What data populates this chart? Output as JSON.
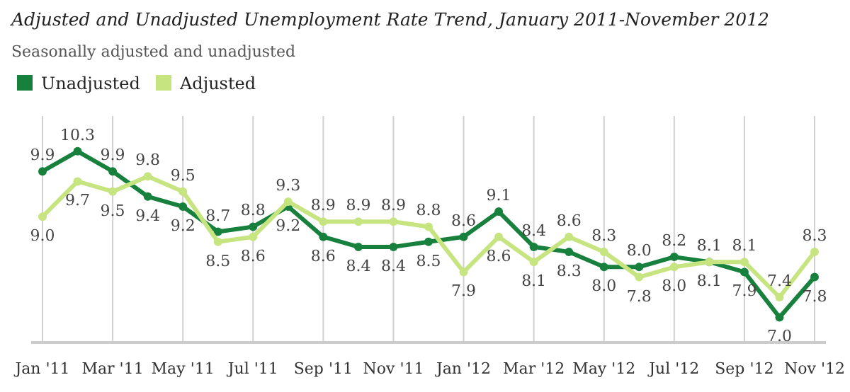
{
  "chart_data": {
    "type": "line",
    "title": "Adjusted and Unadjusted Unemployment Rate Trend, January 2011-November 2012",
    "subtitle": "Seasonally adjusted and unadjusted",
    "categories": [
      "Jan '11",
      null,
      "Mar '11",
      null,
      "May '11",
      null,
      "Jul '11",
      null,
      "Sep '11",
      null,
      "Nov '11",
      null,
      "Jan '12",
      null,
      "Mar '12",
      null,
      "May '12",
      null,
      "Jul '12",
      null,
      "Sep '12",
      null,
      "Nov '12"
    ],
    "series": [
      {
        "name": "Unadjusted",
        "color": "#17803d",
        "values": [
          9.9,
          10.3,
          9.9,
          9.4,
          9.2,
          8.7,
          8.8,
          9.2,
          8.6,
          8.4,
          8.4,
          8.5,
          8.6,
          9.1,
          8.4,
          8.3,
          8.0,
          8.0,
          8.2,
          8.1,
          7.9,
          7.0,
          7.8
        ],
        "value_labels": [
          "9.9",
          "10.3",
          "9.9",
          "9.4",
          "9.2",
          "8.7",
          "8.8",
          "9.2",
          "8.6",
          "8.4",
          "8.4",
          "8.5",
          "8.6",
          "9.1",
          "8.4",
          "8.3",
          "8.0",
          "8.0",
          "8.2",
          "8.1",
          "7.9",
          "7.0",
          "7.8"
        ]
      },
      {
        "name": "Adjusted",
        "color": "#c6e480",
        "values": [
          9.0,
          9.7,
          9.5,
          9.8,
          9.5,
          8.5,
          8.6,
          9.3,
          8.9,
          8.9,
          8.9,
          8.8,
          7.9,
          8.6,
          8.1,
          8.6,
          8.3,
          7.8,
          8.0,
          8.1,
          8.1,
          7.4,
          8.3
        ],
        "value_labels": [
          "9.0",
          "9.7",
          "9.5",
          "9.8",
          "9.5",
          "8.5",
          "8.6",
          "9.3",
          "8.9",
          "8.9",
          "8.9",
          "8.8",
          "7.9",
          "8.6",
          "8.1",
          "8.6",
          "8.3",
          "7.8",
          "8.0",
          "8.1",
          "8.1",
          "7.4",
          "8.3"
        ]
      }
    ],
    "ylim": [
      6.5,
      11
    ],
    "grid": "x",
    "legend": "top left",
    "marker": "circle",
    "line_style": "solid"
  }
}
